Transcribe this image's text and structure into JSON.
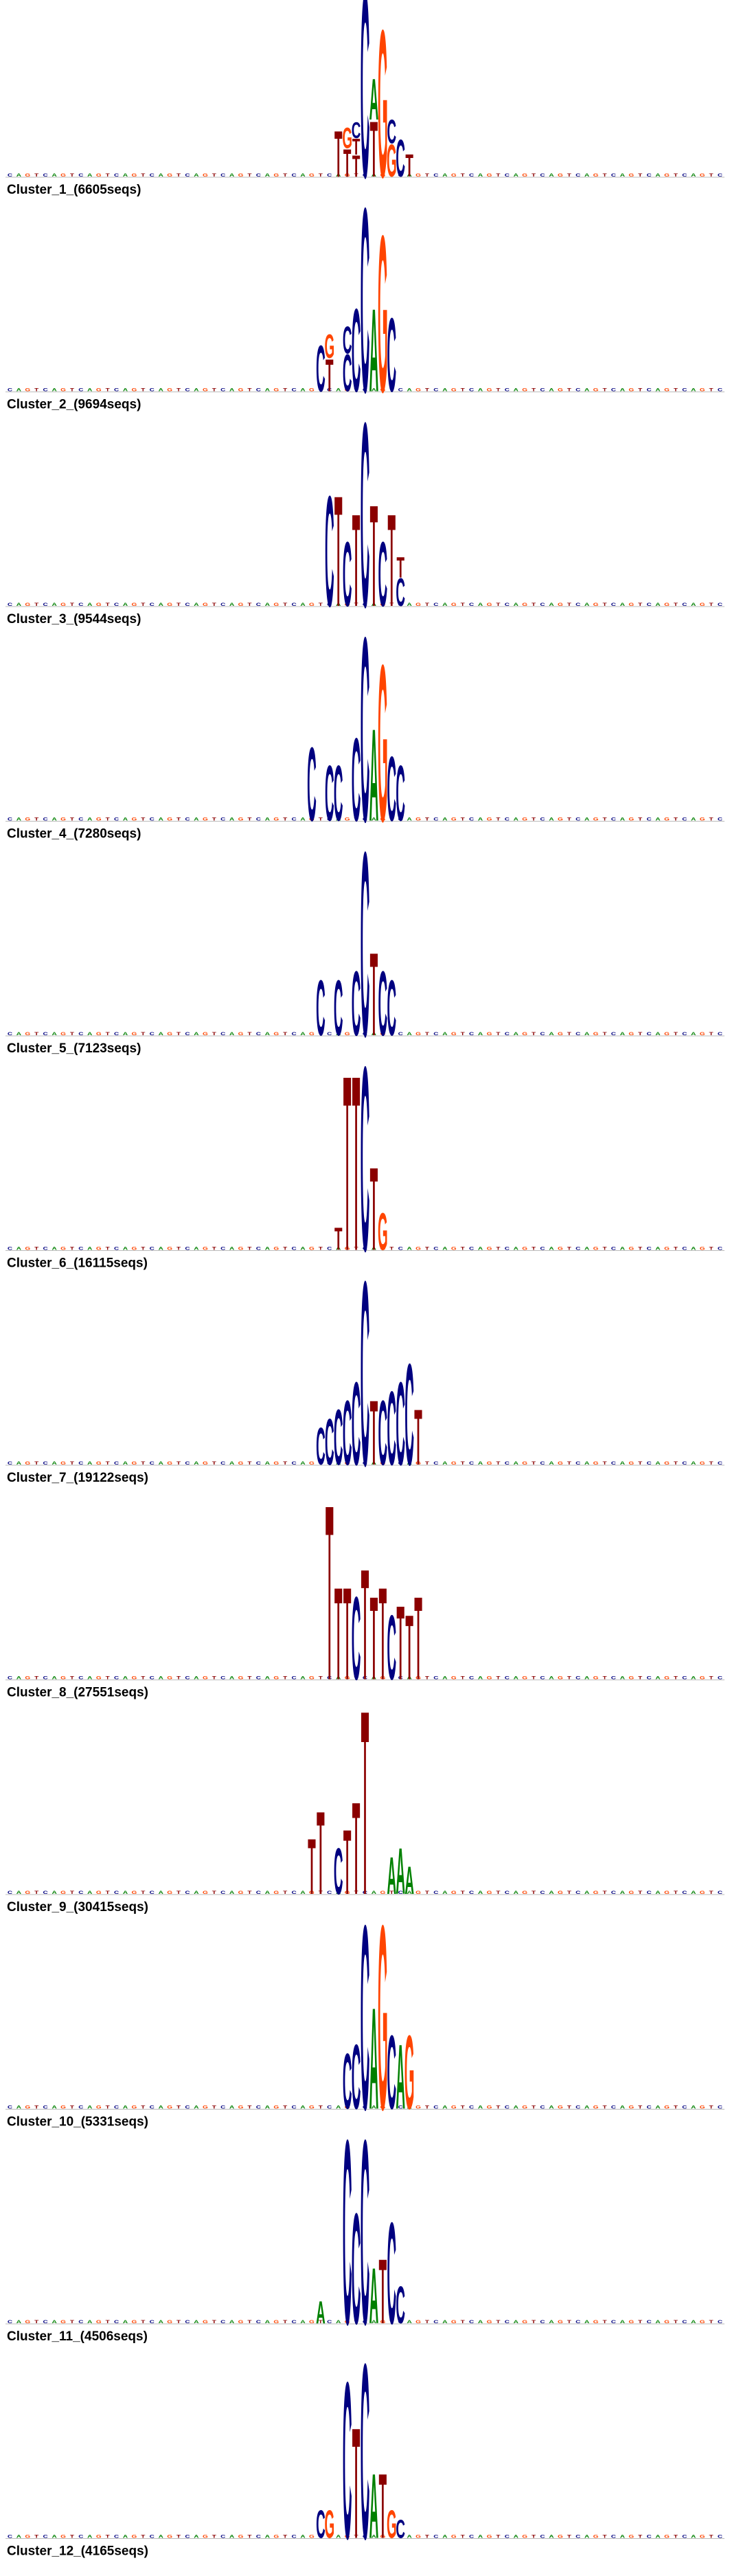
{
  "colors": {
    "A": "#008000",
    "C": "#000080",
    "G": "#ff4500",
    "T": "#8b0000",
    "baseline": "#bbbbbb"
  },
  "chart_data": [
    {
      "type": "sequence-logo",
      "title": "Cluster_1_(6605seqs)",
      "positions": 81,
      "center": 40,
      "peaks": [
        [
          -3,
          "T",
          0.25
        ],
        [
          -2,
          "TG",
          0.3
        ],
        [
          -1,
          "TTC",
          0.35
        ],
        [
          0,
          "C",
          1
        ],
        [
          1,
          "TA",
          0.6
        ],
        [
          2,
          "G",
          0.8
        ],
        [
          3,
          "GC",
          0.35
        ],
        [
          4,
          "C",
          0.2
        ],
        [
          5,
          "T",
          0.12
        ]
      ]
    },
    {
      "type": "sequence-logo",
      "title": "Cluster_2_(9694seqs)",
      "positions": 81,
      "center": 40,
      "peaks": [
        [
          -5,
          "C",
          0.25
        ],
        [
          -4,
          "TG",
          0.35
        ],
        [
          -2,
          "CC",
          0.4
        ],
        [
          -1,
          "C",
          0.45
        ],
        [
          0,
          "C",
          1
        ],
        [
          1,
          "A",
          0.45
        ],
        [
          2,
          "G",
          0.85
        ],
        [
          3,
          "C",
          0.4
        ]
      ]
    },
    {
      "type": "sequence-logo",
      "title": "Cluster_3_(9544seqs)",
      "positions": 81,
      "center": 40,
      "peaks": [
        [
          -4,
          "C",
          0.6
        ],
        [
          -3,
          "T",
          0.6
        ],
        [
          -2,
          "C",
          0.35
        ],
        [
          -1,
          "T",
          0.5
        ],
        [
          0,
          "C",
          1
        ],
        [
          1,
          "T",
          0.55
        ],
        [
          2,
          "C",
          0.35
        ],
        [
          3,
          "T",
          0.5
        ],
        [
          4,
          "CT",
          0.3
        ]
      ]
    },
    {
      "type": "sequence-logo",
      "title": "Cluster_4_(7280seqs)",
      "positions": 81,
      "center": 40,
      "peaks": [
        [
          -6,
          "C",
          0.4
        ],
        [
          -4,
          "C",
          0.3
        ],
        [
          -3,
          "C",
          0.3
        ],
        [
          -1,
          "C",
          0.45
        ],
        [
          0,
          "C",
          1
        ],
        [
          1,
          "A",
          0.5
        ],
        [
          2,
          "G",
          0.85
        ],
        [
          3,
          "C",
          0.35
        ],
        [
          4,
          "C",
          0.3
        ]
      ]
    },
    {
      "type": "sequence-logo",
      "title": "Cluster_5_(7123seqs)",
      "positions": 81,
      "center": 40,
      "peaks": [
        [
          -5,
          "C",
          0.3
        ],
        [
          -3,
          "C",
          0.3
        ],
        [
          -1,
          "C",
          0.35
        ],
        [
          0,
          "C",
          1
        ],
        [
          1,
          "T",
          0.45
        ],
        [
          2,
          "C",
          0.35
        ],
        [
          3,
          "C",
          0.3
        ]
      ]
    },
    {
      "type": "sequence-logo",
      "title": "Cluster_6_(16115seqs)",
      "positions": 81,
      "center": 40,
      "peaks": [
        [
          -3,
          "T",
          0.12
        ],
        [
          -2,
          "T",
          0.95
        ],
        [
          -1,
          "T",
          0.95
        ],
        [
          0,
          "C",
          1
        ],
        [
          1,
          "T",
          0.45
        ],
        [
          2,
          "G",
          0.2
        ]
      ]
    },
    {
      "type": "sequence-logo",
      "title": "Cluster_7_(19122seqs)",
      "positions": 81,
      "center": 40,
      "peaks": [
        [
          -5,
          "C",
          0.2
        ],
        [
          -4,
          "C",
          0.25
        ],
        [
          -3,
          "C",
          0.3
        ],
        [
          -2,
          "C",
          0.35
        ],
        [
          -1,
          "C",
          0.45
        ],
        [
          0,
          "C",
          1
        ],
        [
          1,
          "T",
          0.35
        ],
        [
          2,
          "C",
          0.35
        ],
        [
          3,
          "C",
          0.4
        ],
        [
          4,
          "C",
          0.45
        ],
        [
          5,
          "C",
          0.55
        ],
        [
          6,
          "T",
          0.3
        ]
      ]
    },
    {
      "type": "sequence-logo",
      "title": "Cluster_8_(27551seqs)",
      "positions": 81,
      "center": 40,
      "peaks": [
        [
          -4,
          "T",
          0.95
        ],
        [
          -3,
          "T",
          0.5
        ],
        [
          -2,
          "T",
          0.5
        ],
        [
          -1,
          "C",
          0.45
        ],
        [
          0,
          "T",
          0.6
        ],
        [
          1,
          "T",
          0.45
        ],
        [
          2,
          "T",
          0.5
        ],
        [
          3,
          "C",
          0.35
        ],
        [
          4,
          "T",
          0.4
        ],
        [
          5,
          "T",
          0.35
        ],
        [
          6,
          "T",
          0.45
        ]
      ]
    },
    {
      "type": "sequence-logo",
      "title": "Cluster_9_(30415seqs)",
      "positions": 81,
      "center": 40,
      "peaks": [
        [
          -6,
          "T",
          0.3
        ],
        [
          -5,
          "T",
          0.45
        ],
        [
          -3,
          "C",
          0.25
        ],
        [
          -2,
          "T",
          0.35
        ],
        [
          -1,
          "T",
          0.5
        ],
        [
          0,
          "T",
          1
        ],
        [
          3,
          "A",
          0.2
        ],
        [
          4,
          "A",
          0.25
        ],
        [
          5,
          "A",
          0.15
        ]
      ]
    },
    {
      "type": "sequence-logo",
      "title": "Cluster_10_(5331seqs)",
      "positions": 81,
      "center": 40,
      "peaks": [
        [
          -2,
          "C",
          0.3
        ],
        [
          -1,
          "C",
          0.35
        ],
        [
          0,
          "C",
          1
        ],
        [
          1,
          "A",
          0.55
        ],
        [
          2,
          "G",
          1
        ],
        [
          3,
          "C",
          0.4
        ],
        [
          4,
          "A",
          0.35
        ],
        [
          5,
          "G",
          0.4
        ]
      ]
    },
    {
      "type": "sequence-logo",
      "title": "Cluster_11_(4506seqs)",
      "positions": 81,
      "center": 40,
      "peaks": [
        [
          -5,
          "A",
          0.12
        ],
        [
          -2,
          "C",
          1
        ],
        [
          -1,
          "C",
          0.6
        ],
        [
          0,
          "C",
          1
        ],
        [
          1,
          "A",
          0.3
        ],
        [
          2,
          "T",
          0.35
        ],
        [
          3,
          "C",
          0.55
        ],
        [
          4,
          "C",
          0.2
        ]
      ]
    },
    {
      "type": "sequence-logo",
      "title": "Cluster_12_(4165seqs)",
      "positions": 81,
      "center": 40,
      "peaks": [
        [
          -5,
          "C",
          0.15
        ],
        [
          -4,
          "G",
          0.15
        ],
        [
          -2,
          "C",
          0.85
        ],
        [
          -1,
          "T",
          0.6
        ],
        [
          0,
          "C",
          0.95
        ],
        [
          1,
          "A",
          0.35
        ],
        [
          2,
          "T",
          0.35
        ],
        [
          3,
          "G",
          0.15
        ],
        [
          4,
          "C",
          0.1
        ]
      ]
    }
  ]
}
